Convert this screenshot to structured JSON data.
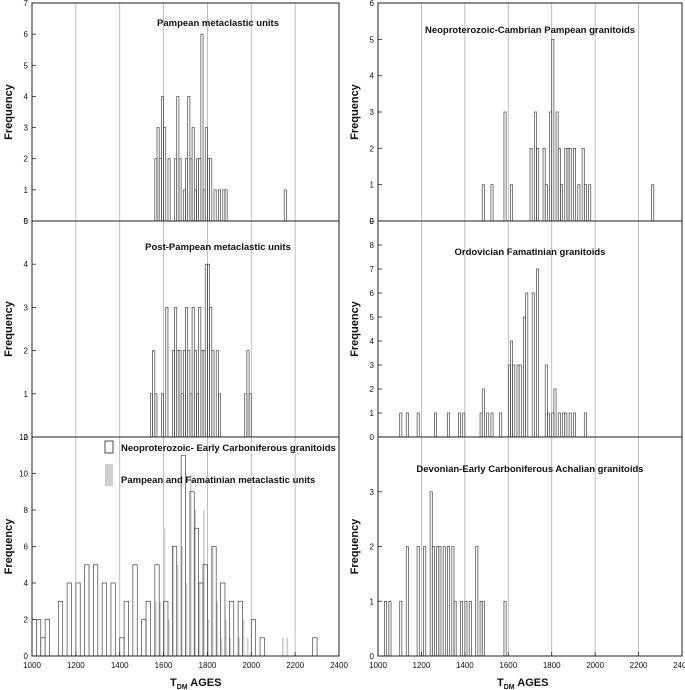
{
  "chart_data": [
    {
      "type": "bar",
      "title": "Pampean metaclastic units",
      "ylabel": "Frequency",
      "xlim": [
        1000,
        2400
      ],
      "ylim": [
        0,
        7
      ],
      "y_ticks": [
        "0",
        "1",
        "2",
        "3",
        "4",
        "5",
        "6",
        "7"
      ],
      "series": [
        {
          "name": "Pampean metaclastic units",
          "style": "open",
          "bins": [
            [
              1560,
              2
            ],
            [
              1570,
              3
            ],
            [
              1580,
              2
            ],
            [
              1590,
              4
            ],
            [
              1600,
              3
            ],
            [
              1620,
              2
            ],
            [
              1650,
              2
            ],
            [
              1660,
              4
            ],
            [
              1670,
              2
            ],
            [
              1690,
              1
            ],
            [
              1700,
              2
            ],
            [
              1710,
              4
            ],
            [
              1720,
              2
            ],
            [
              1730,
              3
            ],
            [
              1740,
              1
            ],
            [
              1750,
              2
            ],
            [
              1760,
              2
            ],
            [
              1770,
              6
            ],
            [
              1780,
              1
            ],
            [
              1790,
              3
            ],
            [
              1800,
              2
            ],
            [
              1810,
              2
            ],
            [
              1830,
              1
            ],
            [
              1850,
              1
            ],
            [
              1870,
              1
            ],
            [
              1880,
              1
            ],
            [
              2150,
              1
            ]
          ]
        }
      ]
    },
    {
      "type": "bar",
      "title": "Post-Pampean metaclastic units",
      "ylabel": "Frequency",
      "xlim": [
        1000,
        2400
      ],
      "ylim": [
        0,
        5
      ],
      "y_ticks": [
        "0",
        "1",
        "2",
        "3",
        "4",
        "5"
      ],
      "series": [
        {
          "name": "Post-Pampean metaclastic units",
          "style": "open",
          "bins": [
            [
              1540,
              1
            ],
            [
              1550,
              2
            ],
            [
              1560,
              1
            ],
            [
              1590,
              1
            ],
            [
              1610,
              3
            ],
            [
              1640,
              2
            ],
            [
              1650,
              3
            ],
            [
              1660,
              2
            ],
            [
              1670,
              2
            ],
            [
              1680,
              1
            ],
            [
              1690,
              2
            ],
            [
              1700,
              3
            ],
            [
              1710,
              2
            ],
            [
              1720,
              1
            ],
            [
              1730,
              3
            ],
            [
              1740,
              2
            ],
            [
              1750,
              1
            ],
            [
              1760,
              3
            ],
            [
              1770,
              2
            ],
            [
              1780,
              2
            ],
            [
              1790,
              4
            ],
            [
              1800,
              4
            ],
            [
              1810,
              3
            ],
            [
              1820,
              2
            ],
            [
              1840,
              2
            ],
            [
              1850,
              1
            ],
            [
              1970,
              1
            ],
            [
              1980,
              2
            ],
            [
              1990,
              1
            ]
          ]
        }
      ]
    },
    {
      "type": "bar",
      "ylabel": "Frequency",
      "xlim": [
        1000,
        2400
      ],
      "ylim": [
        0,
        12
      ],
      "x_ticks": [
        "1000",
        "1200",
        "1400",
        "1600",
        "1800",
        "2000",
        "2200",
        "2400"
      ],
      "y_ticks": [
        "0",
        "2",
        "4",
        "6",
        "8",
        "10",
        "12"
      ],
      "series": [
        {
          "name": "Pampean and Famatinian metaclastic units",
          "style": "filled",
          "bins": [
            [
              1560,
              3
            ],
            [
              1580,
              3
            ],
            [
              1600,
              7
            ],
            [
              1620,
              2
            ],
            [
              1640,
              6
            ],
            [
              1660,
              5
            ],
            [
              1680,
              6
            ],
            [
              1700,
              4
            ],
            [
              1720,
              10
            ],
            [
              1740,
              8
            ],
            [
              1760,
              4
            ],
            [
              1780,
              8
            ],
            [
              1800,
              2
            ],
            [
              1820,
              6
            ],
            [
              1840,
              3
            ],
            [
              1860,
              1
            ],
            [
              1880,
              2
            ],
            [
              1900,
              1
            ],
            [
              1940,
              1
            ],
            [
              1960,
              2
            ],
            [
              1980,
              1
            ],
            [
              2140,
              1
            ],
            [
              2160,
              1
            ]
          ]
        },
        {
          "name": "Neoproterozoic- Early Carboniferous granitoids",
          "style": "open",
          "bins": [
            [
              1020,
              2
            ],
            [
              1040,
              1
            ],
            [
              1060,
              2
            ],
            [
              1120,
              3
            ],
            [
              1160,
              4
            ],
            [
              1200,
              4
            ],
            [
              1240,
              5
            ],
            [
              1280,
              5
            ],
            [
              1320,
              4
            ],
            [
              1360,
              4
            ],
            [
              1400,
              1
            ],
            [
              1420,
              3
            ],
            [
              1460,
              5
            ],
            [
              1500,
              2
            ],
            [
              1520,
              3
            ],
            [
              1560,
              5
            ],
            [
              1600,
              3
            ],
            [
              1640,
              6
            ],
            [
              1680,
              11
            ],
            [
              1720,
              9
            ],
            [
              1740,
              7
            ],
            [
              1760,
              4
            ],
            [
              1780,
              5
            ],
            [
              1820,
              6
            ],
            [
              1860,
              4
            ],
            [
              1900,
              3
            ],
            [
              1940,
              3
            ],
            [
              2000,
              2
            ],
            [
              2040,
              1
            ],
            [
              2280,
              1
            ]
          ]
        }
      ]
    },
    {
      "type": "bar",
      "title": "Neoproterozoic-Cambrian Pampean granitoids",
      "ylabel": "Frequency",
      "xlim": [
        1000,
        2400
      ],
      "ylim": [
        0,
        6
      ],
      "y_ticks": [
        "0",
        "1",
        "2",
        "3",
        "4",
        "5",
        "6"
      ],
      "series": [
        {
          "name": "Neoproterozoic-Cambrian Pampean granitoids",
          "style": "open",
          "bins": [
            [
              1480,
              1
            ],
            [
              1520,
              1
            ],
            [
              1580,
              3
            ],
            [
              1610,
              1
            ],
            [
              1700,
              2
            ],
            [
              1720,
              3
            ],
            [
              1730,
              2
            ],
            [
              1760,
              2
            ],
            [
              1770,
              1
            ],
            [
              1790,
              3
            ],
            [
              1800,
              5
            ],
            [
              1820,
              3
            ],
            [
              1830,
              2
            ],
            [
              1840,
              1
            ],
            [
              1860,
              2
            ],
            [
              1870,
              2
            ],
            [
              1880,
              2
            ],
            [
              1900,
              2
            ],
            [
              1920,
              1
            ],
            [
              1940,
              2
            ],
            [
              1950,
              1
            ],
            [
              1970,
              1
            ],
            [
              2260,
              1
            ]
          ]
        }
      ]
    },
    {
      "type": "bar",
      "title": "Ordovician Famatinian granitoids",
      "ylabel": "Frequency",
      "xlim": [
        1000,
        2400
      ],
      "ylim": [
        0,
        9
      ],
      "y_ticks": [
        "0",
        "1",
        "2",
        "3",
        "4",
        "5",
        "6",
        "7",
        "8",
        "9"
      ],
      "series": [
        {
          "name": "Ordovician Famatinian granitoids",
          "style": "open",
          "bins": [
            [
              1100,
              1
            ],
            [
              1130,
              1
            ],
            [
              1180,
              1
            ],
            [
              1260,
              1
            ],
            [
              1320,
              1
            ],
            [
              1370,
              1
            ],
            [
              1390,
              1
            ],
            [
              1470,
              1
            ],
            [
              1480,
              2
            ],
            [
              1500,
              1
            ],
            [
              1520,
              1
            ],
            [
              1560,
              1
            ],
            [
              1600,
              3
            ],
            [
              1610,
              4
            ],
            [
              1620,
              3
            ],
            [
              1640,
              3
            ],
            [
              1650,
              3
            ],
            [
              1670,
              5
            ],
            [
              1680,
              6
            ],
            [
              1710,
              6
            ],
            [
              1730,
              7
            ],
            [
              1770,
              3
            ],
            [
              1780,
              1
            ],
            [
              1800,
              1
            ],
            [
              1810,
              2
            ],
            [
              1830,
              1
            ],
            [
              1850,
              1
            ],
            [
              1860,
              1
            ],
            [
              1880,
              1
            ],
            [
              1900,
              1
            ],
            [
              1950,
              1
            ]
          ]
        }
      ]
    },
    {
      "type": "bar",
      "title": "Devonian-Early Carboniferous Achalian granitoids",
      "ylabel": "Frequency",
      "xlim": [
        1000,
        2400
      ],
      "ylim": [
        0,
        4
      ],
      "x_ticks": [
        "1000",
        "1200",
        "1400",
        "1600",
        "1800",
        "2000",
        "2200",
        "2400"
      ],
      "y_ticks": [
        "0",
        "1",
        "2",
        "3"
      ],
      "series": [
        {
          "name": "Devonian-Early Carboniferous Achalian granitoids",
          "style": "open",
          "bins": [
            [
              1030,
              1
            ],
            [
              1050,
              1
            ],
            [
              1100,
              1
            ],
            [
              1130,
              2
            ],
            [
              1180,
              2
            ],
            [
              1210,
              2
            ],
            [
              1240,
              3
            ],
            [
              1250,
              2
            ],
            [
              1270,
              2
            ],
            [
              1280,
              2
            ],
            [
              1300,
              2
            ],
            [
              1320,
              2
            ],
            [
              1340,
              2
            ],
            [
              1350,
              1
            ],
            [
              1380,
              1
            ],
            [
              1400,
              1
            ],
            [
              1420,
              1
            ],
            [
              1450,
              2
            ],
            [
              1470,
              1
            ],
            [
              1480,
              1
            ],
            [
              1580,
              1
            ]
          ]
        }
      ]
    }
  ],
  "legend": {
    "open_label": "Neoproterozoic- Early Carboniferous granitoids",
    "filled_label": "Pampean and Famatinian metaclastic units"
  },
  "colors": {
    "open_fill": "#ffffff",
    "filled_fill": "#cfcfcf",
    "bar_stroke": "#444444",
    "grid": "#b0b0b0",
    "frame": "#222222"
  },
  "axis_title": {
    "prefix": "T",
    "subscript": "DM",
    "suffix": " AGES"
  },
  "ylabel_text": "Frequency"
}
